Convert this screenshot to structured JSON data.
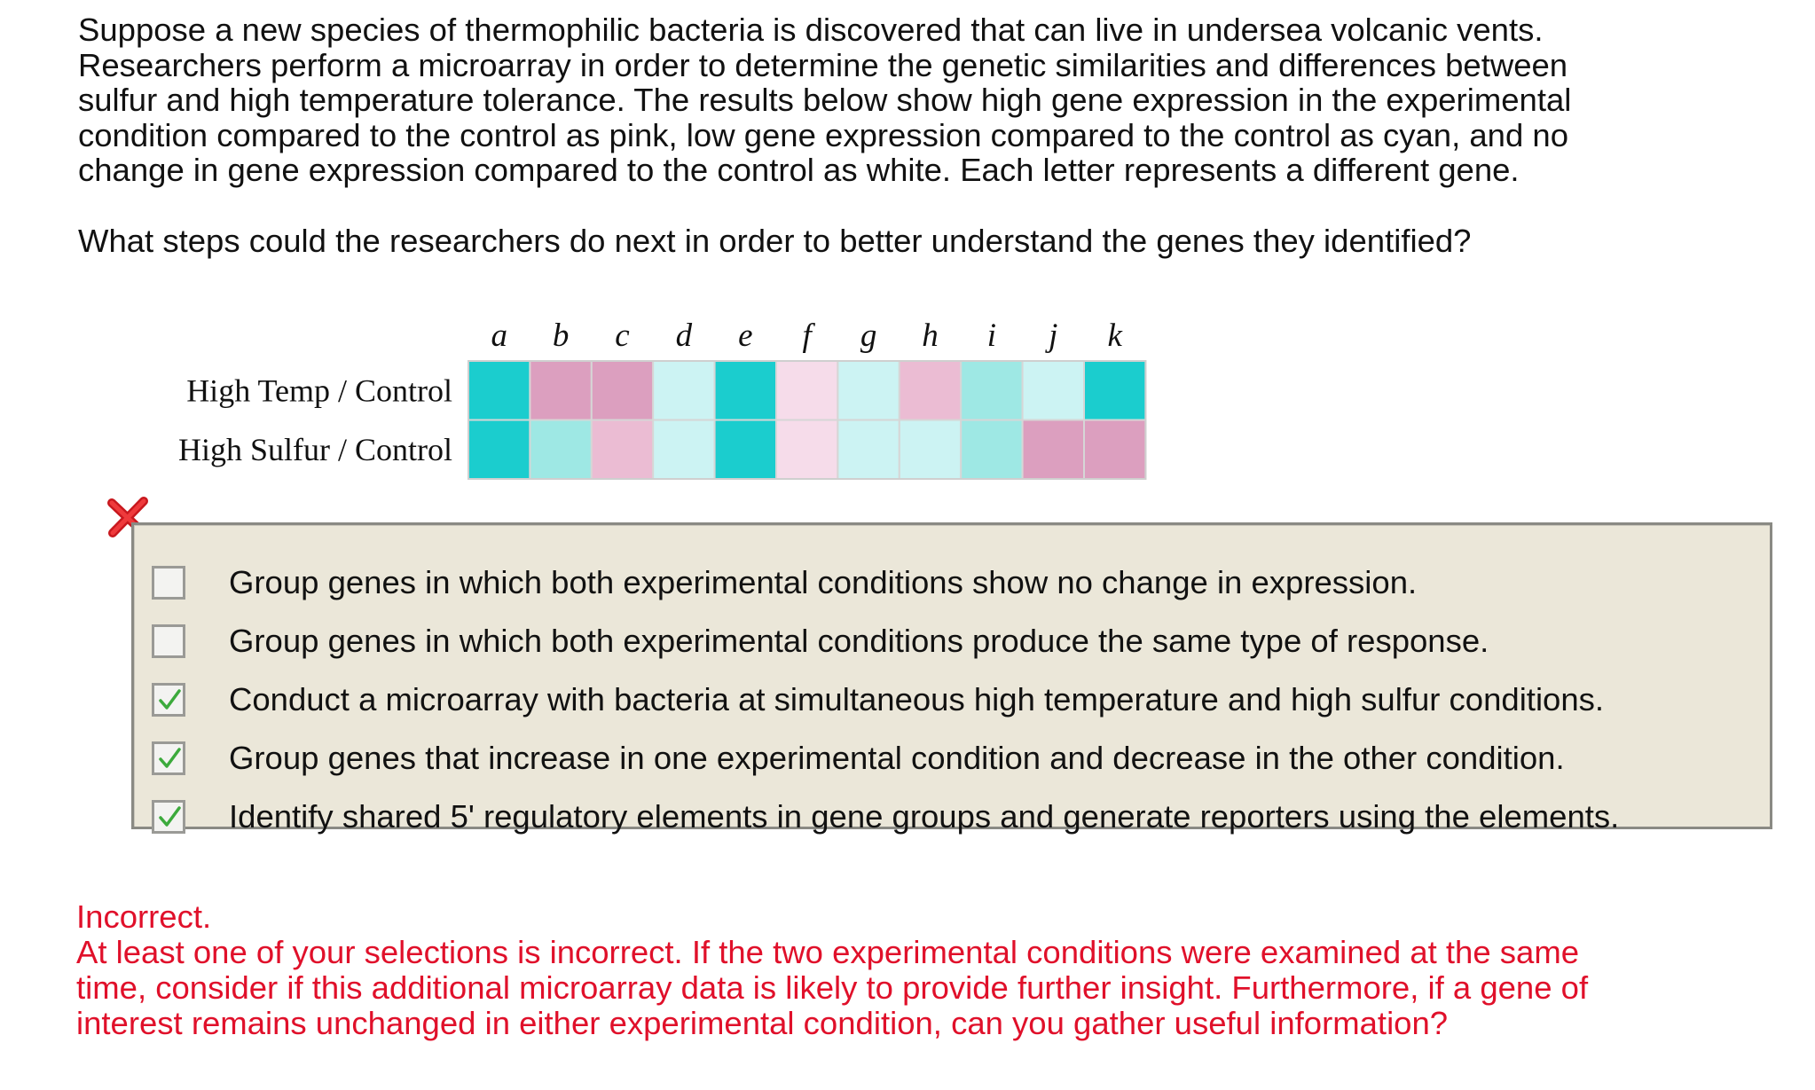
{
  "intro": {
    "lines": [
      "Suppose a new species of thermophilic bacteria is discovered that can live in undersea volcanic vents.",
      "Researchers perform a microarray in order to determine the genetic similarities and differences between",
      "sulfur and high temperature tolerance. The results below show high gene expression in the experimental",
      "condition compared to the control as pink, low gene expression compared to the control as cyan, and no",
      "change in gene expression compared to the control as white. Each letter represents a different gene."
    ]
  },
  "question": "What steps could the researchers do next in order to better understand the genes they identified?",
  "heatmap": {
    "columns": [
      "a",
      "b",
      "c",
      "d",
      "e",
      "f",
      "g",
      "h",
      "i",
      "j",
      "k"
    ],
    "rows": [
      {
        "label": "High Temp / Control",
        "cells": [
          "cyan_strong",
          "pink_strong",
          "pink_strong",
          "cyan_faint",
          "cyan_strong",
          "pink_faint",
          "cyan_faint",
          "pink_medium",
          "cyan_light",
          "cyan_faint",
          "cyan_strong"
        ]
      },
      {
        "label": "High Sulfur / Control",
        "cells": [
          "cyan_strong",
          "cyan_light",
          "pink_medium",
          "cyan_faint",
          "cyan_strong",
          "pink_faint",
          "cyan_faint",
          "cyan_faint",
          "cyan_light",
          "pink_strong",
          "pink_strong"
        ]
      }
    ],
    "colors": {
      "cyan_strong": "#1bcdce",
      "cyan_light": "#9ee8e4",
      "cyan_faint": "#ccf3f3",
      "pink_strong": "#dc9fbf",
      "pink_medium": "#ebbcd3",
      "pink_faint": "#f6dcea",
      "grid": "#d6d6d6"
    }
  },
  "options": [
    {
      "label": "Group genes in which both experimental conditions show no change in expression.",
      "checked": false
    },
    {
      "label": "Group genes in which both experimental conditions produce the same type of response.",
      "checked": false
    },
    {
      "label": "Conduct a microarray with bacteria at simultaneous high temperature and high sulfur conditions.",
      "checked": true
    },
    {
      "label": "Group genes that increase in one experimental condition and decrease in the other condition.",
      "checked": true
    },
    {
      "label": "Identify shared 5' regulatory elements in gene groups and generate reporters using the elements.",
      "checked": true
    }
  ],
  "status_icon": "red-x-icon",
  "feedback": {
    "title": "Incorrect.",
    "lines": [
      "At least one of your selections is incorrect. If the two experimental conditions were examined at the same",
      "time, consider if this additional microarray data is likely to provide further insight. Furthermore, if a gene of",
      "interest remains unchanged in either experimental condition, can you gather useful information?"
    ],
    "color": "#e0102a"
  }
}
